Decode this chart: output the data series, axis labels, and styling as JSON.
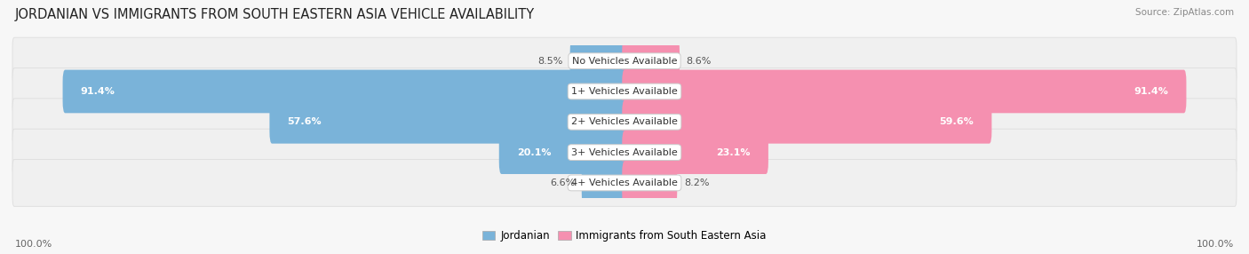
{
  "title": "JORDANIAN VS IMMIGRANTS FROM SOUTH EASTERN ASIA VEHICLE AVAILABILITY",
  "source": "Source: ZipAtlas.com",
  "categories": [
    "No Vehicles Available",
    "1+ Vehicles Available",
    "2+ Vehicles Available",
    "3+ Vehicles Available",
    "4+ Vehicles Available"
  ],
  "jordanian_values": [
    8.5,
    91.4,
    57.6,
    20.1,
    6.6
  ],
  "immigrant_values": [
    8.6,
    91.4,
    59.6,
    23.1,
    8.2
  ],
  "jordanian_color": "#7ab3d9",
  "jordanian_color_dark": "#5a9bc9",
  "immigrant_color": "#f590b0",
  "immigrant_color_dark": "#e8508a",
  "row_bg_color": "#f0f0f0",
  "row_border_color": "#dddddd",
  "max_value": 100.0,
  "bar_height": 0.62,
  "title_fontsize": 10.5,
  "source_fontsize": 7.5,
  "label_fontsize": 8.0,
  "value_fontsize": 8.0,
  "legend_fontsize": 8.5,
  "axis_label_fontsize": 8.0,
  "background_color": "#f7f7f7"
}
